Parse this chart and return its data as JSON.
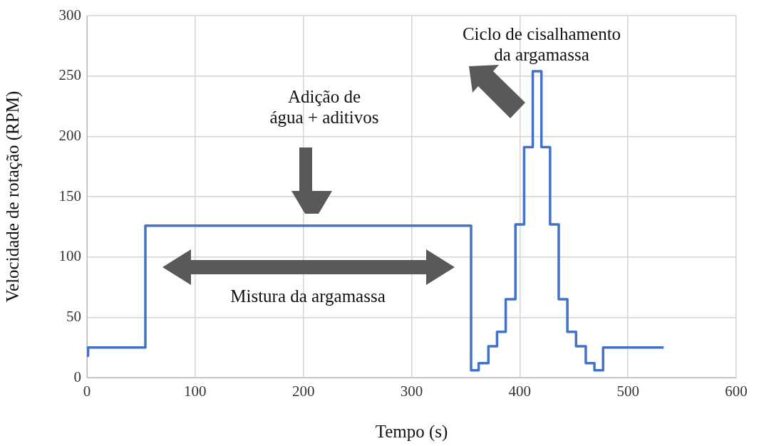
{
  "chart_data": {
    "type": "step",
    "xlabel": "Tempo (s)",
    "ylabel": "Velocidade de rotação (RPM)",
    "x": [
      0,
      1,
      54,
      355,
      362,
      371,
      379,
      387,
      396,
      404,
      412,
      420,
      428,
      436,
      444,
      452,
      461,
      469,
      477,
      533
    ],
    "series": [
      {
        "color": "#4472c4",
        "values": [
          18,
          25,
          126,
          6,
          12,
          26,
          38,
          65,
          127,
          191,
          254,
          191,
          127,
          65,
          38,
          26,
          12,
          6,
          25,
          25
        ]
      }
    ],
    "xlim": [
      0,
      600
    ],
    "xticks": [
      0,
      100,
      200,
      300,
      400,
      500,
      600
    ],
    "ylim": [
      0,
      300
    ],
    "yticks": [
      0,
      50,
      100,
      150,
      200,
      250,
      300
    ],
    "grid": true,
    "legend": false,
    "marker": "none",
    "line_style": "solid",
    "annotations": [
      "Adição de\nágua + aditivos",
      "Ciclo de cisalhamento\nda argamassa",
      "Mistura da argamassa"
    ]
  }
}
